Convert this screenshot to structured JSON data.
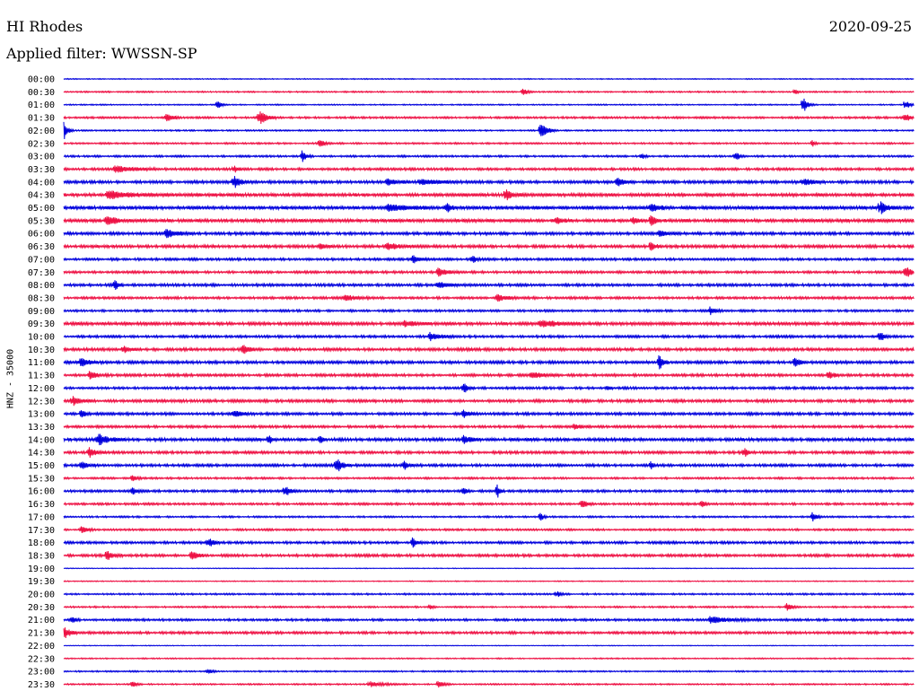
{
  "header": {
    "station": "HI Rhodes",
    "date": "2020-09-25",
    "filter": "Applied filter: WWSSN-SP"
  },
  "chart_data": {
    "type": "line",
    "title": "HI Rhodes",
    "ylabel": "HNZ - 35000",
    "xlabel": "",
    "colors": [
      "#0000dd",
      "#ee1144"
    ],
    "rows": [
      {
        "time": "00:00",
        "amp": 0.4,
        "events": []
      },
      {
        "time": "00:30",
        "amp": 0.6,
        "events": [
          [
            0.54,
            4,
            4
          ],
          [
            0.86,
            3,
            3
          ]
        ]
      },
      {
        "time": "01:00",
        "amp": 0.5,
        "events": [
          [
            0.18,
            5,
            4
          ],
          [
            0.87,
            9,
            4
          ],
          [
            0.99,
            6,
            4
          ]
        ]
      },
      {
        "time": "01:30",
        "amp": 0.8,
        "events": [
          [
            0.12,
            6,
            6
          ],
          [
            0.23,
            8,
            7
          ],
          [
            0.99,
            6,
            4
          ]
        ]
      },
      {
        "time": "02:00",
        "amp": 0.6,
        "events": [
          [
            0.0,
            9,
            4
          ],
          [
            0.56,
            9,
            7
          ]
        ]
      },
      {
        "time": "02:30",
        "amp": 0.7,
        "events": [
          [
            0.3,
            4,
            6
          ],
          [
            0.88,
            4,
            3
          ]
        ]
      },
      {
        "time": "03:00",
        "amp": 0.8,
        "events": [
          [
            0.28,
            7,
            4
          ],
          [
            0.79,
            5,
            4
          ],
          [
            0.68,
            3,
            3
          ]
        ]
      },
      {
        "time": "03:30",
        "amp": 1.0,
        "events": [
          [
            0.06,
            4,
            18
          ],
          [
            0.2,
            4,
            4
          ]
        ]
      },
      {
        "time": "04:00",
        "amp": 1.2,
        "events": [
          [
            0.2,
            7,
            6
          ],
          [
            0.38,
            4,
            10
          ],
          [
            0.42,
            4,
            14
          ],
          [
            0.65,
            5,
            6
          ],
          [
            0.87,
            4,
            8
          ]
        ]
      },
      {
        "time": "04:30",
        "amp": 1.4,
        "events": [
          [
            0.05,
            4,
            25
          ],
          [
            0.52,
            6,
            6
          ]
        ]
      },
      {
        "time": "05:00",
        "amp": 1.5,
        "events": [
          [
            0.38,
            3,
            20
          ],
          [
            0.45,
            6,
            4
          ],
          [
            0.69,
            5,
            8
          ],
          [
            0.96,
            8,
            6
          ]
        ]
      },
      {
        "time": "05:30",
        "amp": 1.4,
        "events": [
          [
            0.05,
            6,
            8
          ],
          [
            0.58,
            5,
            4
          ],
          [
            0.67,
            5,
            4
          ],
          [
            0.69,
            8,
            4
          ]
        ]
      },
      {
        "time": "06:00",
        "amp": 1.2,
        "events": [
          [
            0.12,
            5,
            10
          ],
          [
            0.7,
            4,
            8
          ]
        ]
      },
      {
        "time": "06:30",
        "amp": 1.2,
        "events": [
          [
            0.3,
            3,
            6
          ],
          [
            0.38,
            4,
            12
          ],
          [
            0.69,
            7,
            4
          ]
        ]
      },
      {
        "time": "07:00",
        "amp": 1.0,
        "events": [
          [
            0.41,
            5,
            6
          ],
          [
            0.48,
            6,
            3
          ]
        ]
      },
      {
        "time": "07:30",
        "amp": 1.0,
        "events": [
          [
            0.44,
            5,
            8
          ],
          [
            0.99,
            7,
            6
          ]
        ]
      },
      {
        "time": "08:00",
        "amp": 1.1,
        "events": [
          [
            0.06,
            7,
            3
          ],
          [
            0.44,
            3,
            12
          ]
        ]
      },
      {
        "time": "08:30",
        "amp": 1.0,
        "events": [
          [
            0.33,
            4,
            10
          ],
          [
            0.51,
            4,
            8
          ]
        ]
      },
      {
        "time": "09:00",
        "amp": 0.9,
        "events": [
          [
            0.76,
            4,
            6
          ]
        ]
      },
      {
        "time": "09:30",
        "amp": 1.3,
        "events": [
          [
            0.4,
            4,
            8
          ],
          [
            0.56,
            4,
            16
          ]
        ]
      },
      {
        "time": "10:00",
        "amp": 1.0,
        "events": [
          [
            0.43,
            5,
            10
          ],
          [
            0.96,
            6,
            4
          ]
        ]
      },
      {
        "time": "10:30",
        "amp": 1.2,
        "events": [
          [
            0.07,
            4,
            6
          ],
          [
            0.21,
            6,
            6
          ]
        ]
      },
      {
        "time": "11:00",
        "amp": 1.2,
        "events": [
          [
            0.02,
            7,
            6
          ],
          [
            0.7,
            8,
            4
          ],
          [
            0.86,
            6,
            4
          ]
        ]
      },
      {
        "time": "11:30",
        "amp": 1.1,
        "events": [
          [
            0.03,
            5,
            6
          ],
          [
            0.55,
            4,
            10
          ],
          [
            0.9,
            4,
            6
          ]
        ]
      },
      {
        "time": "12:00",
        "amp": 1.0,
        "events": [
          [
            0.47,
            6,
            4
          ],
          [
            0.64,
            3,
            3
          ]
        ]
      },
      {
        "time": "12:30",
        "amp": 1.2,
        "events": [
          [
            0.01,
            5,
            8
          ]
        ]
      },
      {
        "time": "13:00",
        "amp": 1.1,
        "events": [
          [
            0.02,
            6,
            4
          ],
          [
            0.2,
            4,
            8
          ],
          [
            0.47,
            4,
            6
          ]
        ]
      },
      {
        "time": "13:30",
        "amp": 1.0,
        "events": [
          [
            0.6,
            3,
            8
          ]
        ]
      },
      {
        "time": "14:00",
        "amp": 1.3,
        "events": [
          [
            0.04,
            6,
            10
          ],
          [
            0.24,
            5,
            4
          ],
          [
            0.3,
            6,
            3
          ],
          [
            0.47,
            6,
            6
          ]
        ]
      },
      {
        "time": "14:30",
        "amp": 1.1,
        "events": [
          [
            0.03,
            5,
            6
          ],
          [
            0.8,
            5,
            4
          ]
        ]
      },
      {
        "time": "15:00",
        "amp": 1.1,
        "events": [
          [
            0.02,
            5,
            6
          ],
          [
            0.32,
            9,
            6
          ],
          [
            0.4,
            5,
            4
          ],
          [
            0.69,
            5,
            3
          ]
        ]
      },
      {
        "time": "15:30",
        "amp": 0.8,
        "events": [
          [
            0.08,
            4,
            4
          ]
        ]
      },
      {
        "time": "16:00",
        "amp": 1.0,
        "events": [
          [
            0.08,
            5,
            4
          ],
          [
            0.26,
            6,
            6
          ],
          [
            0.47,
            6,
            3
          ],
          [
            0.51,
            7,
            3
          ]
        ]
      },
      {
        "time": "16:30",
        "amp": 0.9,
        "events": [
          [
            0.61,
            6,
            4
          ],
          [
            0.75,
            5,
            3
          ]
        ]
      },
      {
        "time": "17:00",
        "amp": 0.7,
        "events": [
          [
            0.56,
            5,
            3
          ],
          [
            0.88,
            6,
            4
          ]
        ]
      },
      {
        "time": "17:30",
        "amp": 0.8,
        "events": [
          [
            0.02,
            4,
            6
          ]
        ]
      },
      {
        "time": "18:00",
        "amp": 1.0,
        "events": [
          [
            0.17,
            5,
            6
          ],
          [
            0.41,
            6,
            4
          ]
        ]
      },
      {
        "time": "18:30",
        "amp": 1.1,
        "events": [
          [
            0.05,
            6,
            6
          ],
          [
            0.15,
            5,
            6
          ]
        ]
      },
      {
        "time": "19:00",
        "amp": 0.3,
        "events": []
      },
      {
        "time": "19:30",
        "amp": 0.4,
        "events": []
      },
      {
        "time": "20:00",
        "amp": 0.7,
        "events": [
          [
            0.58,
            4,
            3
          ]
        ]
      },
      {
        "time": "20:30",
        "amp": 0.7,
        "events": [
          [
            0.43,
            3,
            3
          ],
          [
            0.85,
            4,
            6
          ]
        ]
      },
      {
        "time": "21:00",
        "amp": 0.9,
        "events": [
          [
            0.01,
            5,
            3
          ],
          [
            0.76,
            4,
            18
          ]
        ]
      },
      {
        "time": "21:30",
        "amp": 1.0,
        "events": [
          [
            0.0,
            7,
            6
          ]
        ]
      },
      {
        "time": "22:00",
        "amp": 0.3,
        "events": []
      },
      {
        "time": "22:30",
        "amp": 0.5,
        "events": []
      },
      {
        "time": "23:00",
        "amp": 0.6,
        "events": [
          [
            0.17,
            3,
            4
          ]
        ]
      },
      {
        "time": "23:30",
        "amp": 0.6,
        "events": [
          [
            0.08,
            4,
            4
          ],
          [
            0.36,
            3,
            12
          ],
          [
            0.44,
            4,
            6
          ]
        ]
      }
    ]
  }
}
